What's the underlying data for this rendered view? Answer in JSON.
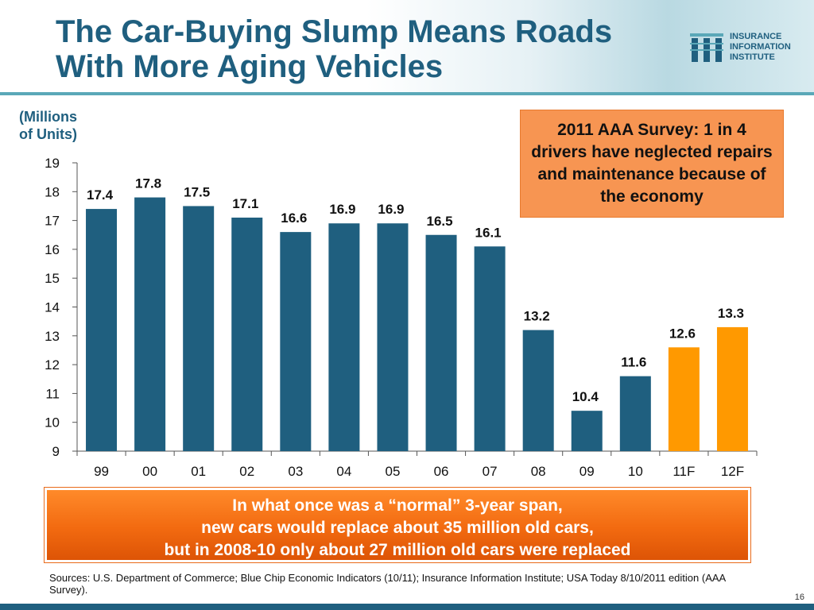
{
  "title": {
    "line1": "The Car-Buying Slump Means Roads",
    "line2": "With More Aging Vehicles"
  },
  "logo": {
    "line1": "INSURANCE",
    "line2": "INFORMATION",
    "line3": "INSTITUTE"
  },
  "unit_label": {
    "line1": "(Millions",
    "line2": "of Units)"
  },
  "callout": "2011 AAA Survey: 1 in 4 drivers have neglected repairs and maintenance because of the economy",
  "banner": {
    "line1": "In what once was a “normal” 3-year span,",
    "line2": "new cars would replace about 35 million old cars,",
    "line3": "but in 2008-10 only about 27 million old cars were replaced"
  },
  "sources": "Sources: U.S. Department of Commerce; Blue Chip Economic Indicators (10/11); Insurance Information Institute; USA Today 8/10/2011 edition (AAA Survey).",
  "page_number": "16",
  "colors": {
    "title": "#1f5f7f",
    "bar_actual": "#1f5f7f",
    "bar_forecast": "#ff9900",
    "callout_bg": "#f79552",
    "banner_bg": "#f26a10"
  },
  "chart_data": {
    "type": "bar",
    "categories": [
      "99",
      "00",
      "01",
      "02",
      "03",
      "04",
      "05",
      "06",
      "07",
      "08",
      "09",
      "10",
      "11F",
      "12F"
    ],
    "values": [
      17.4,
      17.8,
      17.5,
      17.1,
      16.6,
      16.9,
      16.9,
      16.5,
      16.1,
      13.2,
      10.4,
      11.6,
      12.6,
      13.3
    ],
    "labels": [
      "17.4",
      "17.8",
      "17.5",
      "17.1",
      "16.6",
      "16.9",
      "16.9",
      "16.5",
      "16.1",
      "13.2",
      "10.4",
      "11.6",
      "12.6",
      "13.3"
    ],
    "forecast": [
      false,
      false,
      false,
      false,
      false,
      false,
      false,
      false,
      false,
      false,
      false,
      false,
      true,
      true
    ],
    "yticks": [
      "9",
      "10",
      "11",
      "12",
      "13",
      "14",
      "15",
      "16",
      "17",
      "18",
      "19"
    ],
    "ylim": [
      9,
      19
    ],
    "ylabel": "(Millions of Units)",
    "grid": false
  }
}
